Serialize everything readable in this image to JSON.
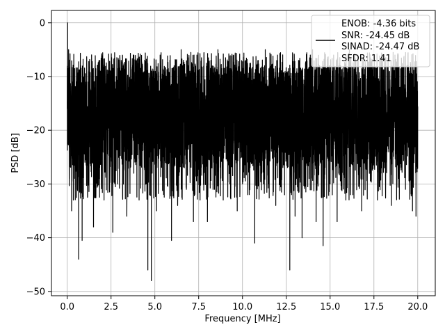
{
  "chart_data": {
    "type": "line",
    "title": "",
    "xlabel": "Frequency [MHz]",
    "ylabel": "PSD [dB]",
    "xlim": [
      -0.9,
      21.0
    ],
    "ylim": [
      -50.8,
      2.3
    ],
    "xticks": [
      {
        "value": 0.0,
        "label": "0.0"
      },
      {
        "value": 2.5,
        "label": "2.5"
      },
      {
        "value": 5.0,
        "label": "5.0"
      },
      {
        "value": 7.5,
        "label": "7.5"
      },
      {
        "value": 10.0,
        "label": "10.0"
      },
      {
        "value": 12.5,
        "label": "12.5"
      },
      {
        "value": 15.0,
        "label": "15.0"
      },
      {
        "value": 17.5,
        "label": "17.5"
      },
      {
        "value": 20.0,
        "label": "20.0"
      }
    ],
    "yticks": [
      {
        "value": 0,
        "label": "0"
      },
      {
        "value": -10,
        "label": "−10"
      },
      {
        "value": -20,
        "label": "−20"
      },
      {
        "value": -30,
        "label": "−30"
      },
      {
        "value": -40,
        "label": "−40"
      },
      {
        "value": -50,
        "label": "−50"
      }
    ],
    "grid": true,
    "legend_position": "top-right",
    "series": [
      {
        "legend_lines": [
          "ENOB: -4.36 bits",
          "SNR: -24.45 dB",
          "SINAD: -24.47 dB",
          "SFDR: 1.41"
        ],
        "color": "#000000",
        "x_range": [
          0.0,
          20.0
        ],
        "points": [
          [
            0.0,
            -16
          ],
          [
            0.02,
            0.0
          ],
          [
            0.05,
            -12
          ],
          [
            0.08,
            -5
          ],
          [
            0.12,
            -29
          ],
          [
            0.15,
            -9
          ],
          [
            0.2,
            -20
          ],
          [
            0.25,
            -35
          ],
          [
            0.3,
            -11
          ],
          [
            0.35,
            -33
          ],
          [
            0.4,
            -10
          ],
          [
            0.5,
            -22
          ],
          [
            0.55,
            -27
          ],
          [
            0.65,
            -44
          ],
          [
            0.75,
            -12
          ],
          [
            0.85,
            -40.5
          ],
          [
            1.0,
            -14
          ],
          [
            1.2,
            -30
          ],
          [
            1.4,
            -11
          ],
          [
            1.5,
            -38
          ],
          [
            1.7,
            -13
          ],
          [
            1.8,
            -29
          ],
          [
            1.9,
            -9
          ],
          [
            2.1,
            -33
          ],
          [
            2.3,
            -12
          ],
          [
            2.6,
            -39
          ],
          [
            2.8,
            -10
          ],
          [
            3.0,
            -21
          ],
          [
            3.2,
            -8
          ],
          [
            3.4,
            -36
          ],
          [
            3.6,
            -11
          ],
          [
            3.8,
            -28
          ],
          [
            3.9,
            -7
          ],
          [
            4.1,
            -33
          ],
          [
            4.3,
            -9
          ],
          [
            4.5,
            -30
          ],
          [
            4.6,
            -46
          ],
          [
            4.75,
            -13
          ],
          [
            4.8,
            -48
          ],
          [
            4.95,
            -12
          ],
          [
            5.1,
            -35
          ],
          [
            5.3,
            -6
          ],
          [
            5.5,
            -27
          ],
          [
            5.8,
            -12
          ],
          [
            5.95,
            -40.5
          ],
          [
            6.1,
            -8
          ],
          [
            6.3,
            -34
          ],
          [
            6.5,
            -5
          ],
          [
            6.8,
            -31
          ],
          [
            7.0,
            -9
          ],
          [
            7.2,
            -37
          ],
          [
            7.4,
            -6
          ],
          [
            7.6,
            -29
          ],
          [
            7.8,
            -11
          ],
          [
            8.0,
            -37
          ],
          [
            8.2,
            -7
          ],
          [
            8.4,
            -31
          ],
          [
            8.6,
            -5
          ],
          [
            8.9,
            -33
          ],
          [
            9.1,
            -9
          ],
          [
            9.3,
            -28
          ],
          [
            9.5,
            -6
          ],
          [
            9.7,
            -35
          ],
          [
            9.9,
            -10
          ],
          [
            10.0,
            -30
          ],
          [
            10.2,
            -8
          ],
          [
            10.3,
            -32
          ],
          [
            10.55,
            -12
          ],
          [
            10.7,
            -41
          ],
          [
            10.9,
            -7
          ],
          [
            11.1,
            -28
          ],
          [
            11.3,
            -5
          ],
          [
            11.5,
            -30
          ],
          [
            11.7,
            -9
          ],
          [
            11.9,
            -34
          ],
          [
            12.0,
            -6
          ],
          [
            12.2,
            -27
          ],
          [
            12.4,
            -11
          ],
          [
            12.7,
            -46
          ],
          [
            12.85,
            -8
          ],
          [
            13.0,
            -36
          ],
          [
            13.2,
            -7
          ],
          [
            13.4,
            -40
          ],
          [
            13.6,
            -9
          ],
          [
            13.8,
            -29
          ],
          [
            14.0,
            -5
          ],
          [
            14.2,
            -37
          ],
          [
            14.4,
            -8
          ],
          [
            14.6,
            -41.5
          ],
          [
            14.8,
            -10
          ],
          [
            15.0,
            -30
          ],
          [
            15.2,
            -6
          ],
          [
            15.4,
            -37
          ],
          [
            15.6,
            -8
          ],
          [
            15.9,
            -33
          ],
          [
            16.1,
            -5
          ],
          [
            16.3,
            -32
          ],
          [
            16.6,
            -9
          ],
          [
            16.8,
            -35
          ],
          [
            17.0,
            -7
          ],
          [
            17.3,
            -28
          ],
          [
            17.5,
            -10
          ],
          [
            17.7,
            -33
          ],
          [
            17.9,
            -8
          ],
          [
            18.1,
            -27
          ],
          [
            18.3,
            -9
          ],
          [
            18.5,
            -34
          ],
          [
            18.7,
            -6
          ],
          [
            18.9,
            -29
          ],
          [
            19.1,
            -10
          ],
          [
            19.3,
            -31
          ],
          [
            19.5,
            -9
          ],
          [
            19.7,
            -35
          ],
          [
            19.8,
            -12
          ],
          [
            19.9,
            -36
          ],
          [
            20.0,
            -18
          ]
        ],
        "noise_floor": {
          "upper_typical": -8,
          "lower_typical": -27
        }
      }
    ]
  }
}
